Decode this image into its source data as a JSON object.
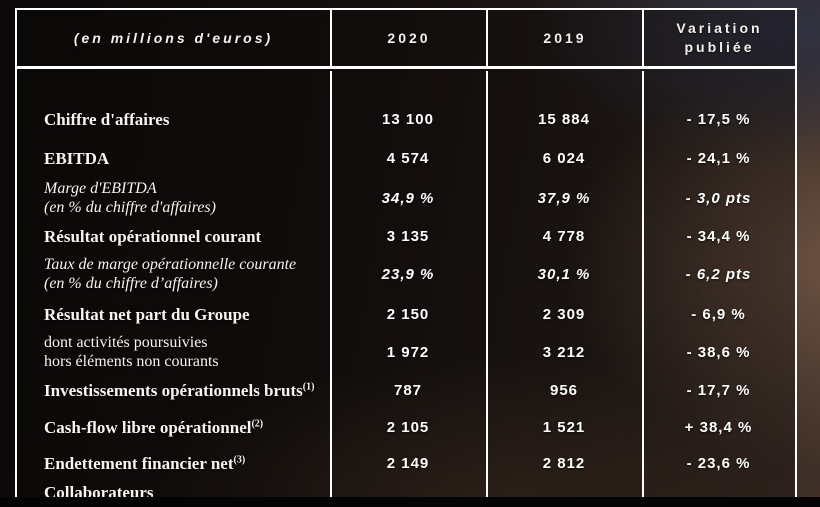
{
  "table": {
    "header": {
      "units": "(en millions d'euros)",
      "col_2020": "2020",
      "col_2019": "2019",
      "variation_line1": "Variation",
      "variation_line2": "publiée"
    },
    "rows": [
      {
        "label": "Chiffre d'affaires",
        "v2020": "13 100",
        "v2019": "15 884",
        "variation": "- 17,5 %"
      },
      {
        "label": "EBITDA",
        "v2020": "4 574",
        "v2019": "6 024",
        "variation": "- 24,1 %"
      },
      {
        "label": "Marge d'EBITDA",
        "label2": "(en % du chiffre d'affaires)",
        "v2020": "34,9 %",
        "v2019": "37,9 %",
        "variation": "- 3,0 pts"
      },
      {
        "label": "Résultat opérationnel courant",
        "v2020": "3 135",
        "v2019": "4 778",
        "variation": "- 34,4 %"
      },
      {
        "label": "Taux de marge opérationnelle courante",
        "label2": "(en % du chiffre d’affaires)",
        "v2020": "23,9 %",
        "v2019": "30,1 %",
        "variation": "- 6,2 pts"
      },
      {
        "label": "Résultat net part du Groupe",
        "v2020": "2 150",
        "v2019": "2 309",
        "variation": "- 6,9 %"
      },
      {
        "label": "dont activités poursuivies",
        "label2": "hors éléments non courants",
        "v2020": "1 972",
        "v2019": "3 212",
        "variation": "- 38,6 %"
      },
      {
        "label": "Investissements opérationnels bruts",
        "sup": "(1)",
        "v2020": "787",
        "v2019": "956",
        "variation": "- 17,7 %"
      },
      {
        "label": "Cash-flow libre opérationnel",
        "sup": "(2)",
        "v2020": "2 105",
        "v2019": "1 521",
        "variation": "+ 38,4 %"
      },
      {
        "label": "Endettement financier net",
        "sup": "(3)",
        "v2020": "2 149",
        "v2019": "2 812",
        "variation": "- 23,6 %"
      },
      {
        "label": "Collaborateurs"
      }
    ]
  },
  "colors": {
    "border": "#ffffff",
    "label_text": "#f8f5ef",
    "value_text": "#ffffff",
    "bg_dark": "#120e0d",
    "bg_warm_brown": "#54413a",
    "bg_slate_blue": "#303444",
    "bottom_bar": "#040404"
  }
}
